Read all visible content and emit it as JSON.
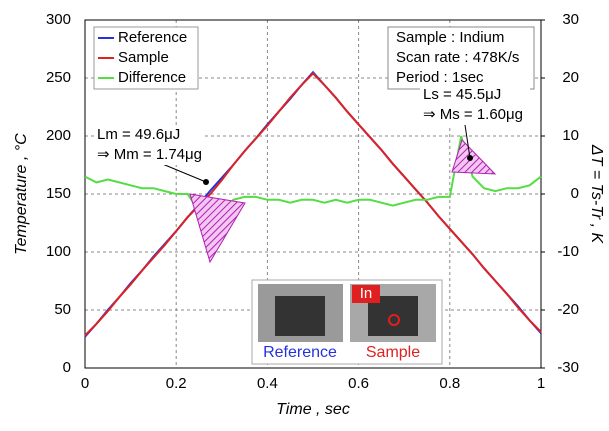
{
  "chart_data": {
    "type": "line",
    "xlabel": "Time , sec",
    "ylabel": "Temperature , °C",
    "y2label": "ΔT = Ts-Tr , K",
    "x": [
      0,
      0.025,
      0.05,
      0.075,
      0.1,
      0.125,
      0.15,
      0.175,
      0.2,
      0.225,
      0.25,
      0.275,
      0.3,
      0.325,
      0.35,
      0.375,
      0.4,
      0.425,
      0.45,
      0.475,
      0.5,
      0.525,
      0.55,
      0.575,
      0.6,
      0.625,
      0.65,
      0.675,
      0.7,
      0.725,
      0.75,
      0.775,
      0.8,
      0.825,
      0.85,
      0.875,
      0.9,
      0.925,
      0.95,
      0.975,
      1
    ],
    "series": [
      {
        "name": "Reference",
        "color": "#2233dd",
        "values": [
          27,
          38,
          50,
          61,
          73,
          84,
          96,
          107,
          118,
          130,
          141,
          153,
          164,
          175,
          187,
          198,
          210,
          221,
          232,
          244,
          255,
          244,
          233,
          221,
          210,
          199,
          188,
          176,
          165,
          154,
          143,
          131,
          120,
          109,
          98,
          86,
          75,
          64,
          53,
          41,
          30
        ]
      },
      {
        "name": "Sample",
        "color": "#dd2222",
        "values": [
          28,
          38,
          49,
          61,
          72,
          84,
          95,
          106,
          118,
          130,
          140,
          150,
          162,
          175,
          187,
          198,
          209,
          221,
          233,
          244,
          254,
          244,
          233,
          221,
          210,
          199,
          188,
          176,
          165,
          154,
          143,
          131,
          120,
          109,
          98,
          86,
          75,
          64,
          52,
          41,
          31
        ]
      },
      {
        "name": "Difference",
        "color": "#55dd44",
        "axis": "y2",
        "values": [
          3,
          2,
          2.5,
          2,
          1.5,
          1,
          1,
          0.5,
          0,
          0,
          -3,
          -10,
          -4,
          -1,
          -0.5,
          -0.5,
          -1,
          -1,
          -1.5,
          -1,
          -1,
          -1.5,
          -1,
          -1.5,
          -1,
          -1,
          -1.5,
          -2,
          -1.5,
          -1,
          -1,
          -0.5,
          -0.5,
          10,
          3,
          1,
          0.5,
          1,
          1,
          1.5,
          3
        ]
      }
    ],
    "xlim": [
      0,
      1
    ],
    "xticks": [
      0,
      0.2,
      0.4,
      0.6,
      0.8,
      1
    ],
    "ylim": [
      0,
      300
    ],
    "yticks": [
      0,
      50,
      100,
      150,
      200,
      250,
      300
    ],
    "y2lim": [
      -30,
      30
    ],
    "y2ticks": [
      -30,
      -20,
      -10,
      0,
      10,
      20,
      30
    ],
    "grid": true,
    "legend": "upper left",
    "info_box": [
      "Sample : Indium",
      "Scan rate : 478K/s",
      "Period : 1sec"
    ],
    "annotations": [
      [
        "Lm = 49.6μJ",
        "⇒ Mm = 1.74μg"
      ],
      [
        "Ls = 45.5μJ",
        "⇒ Ms = 1.60μg"
      ]
    ],
    "inset_labels": [
      "Reference",
      "Sample",
      "In"
    ]
  }
}
